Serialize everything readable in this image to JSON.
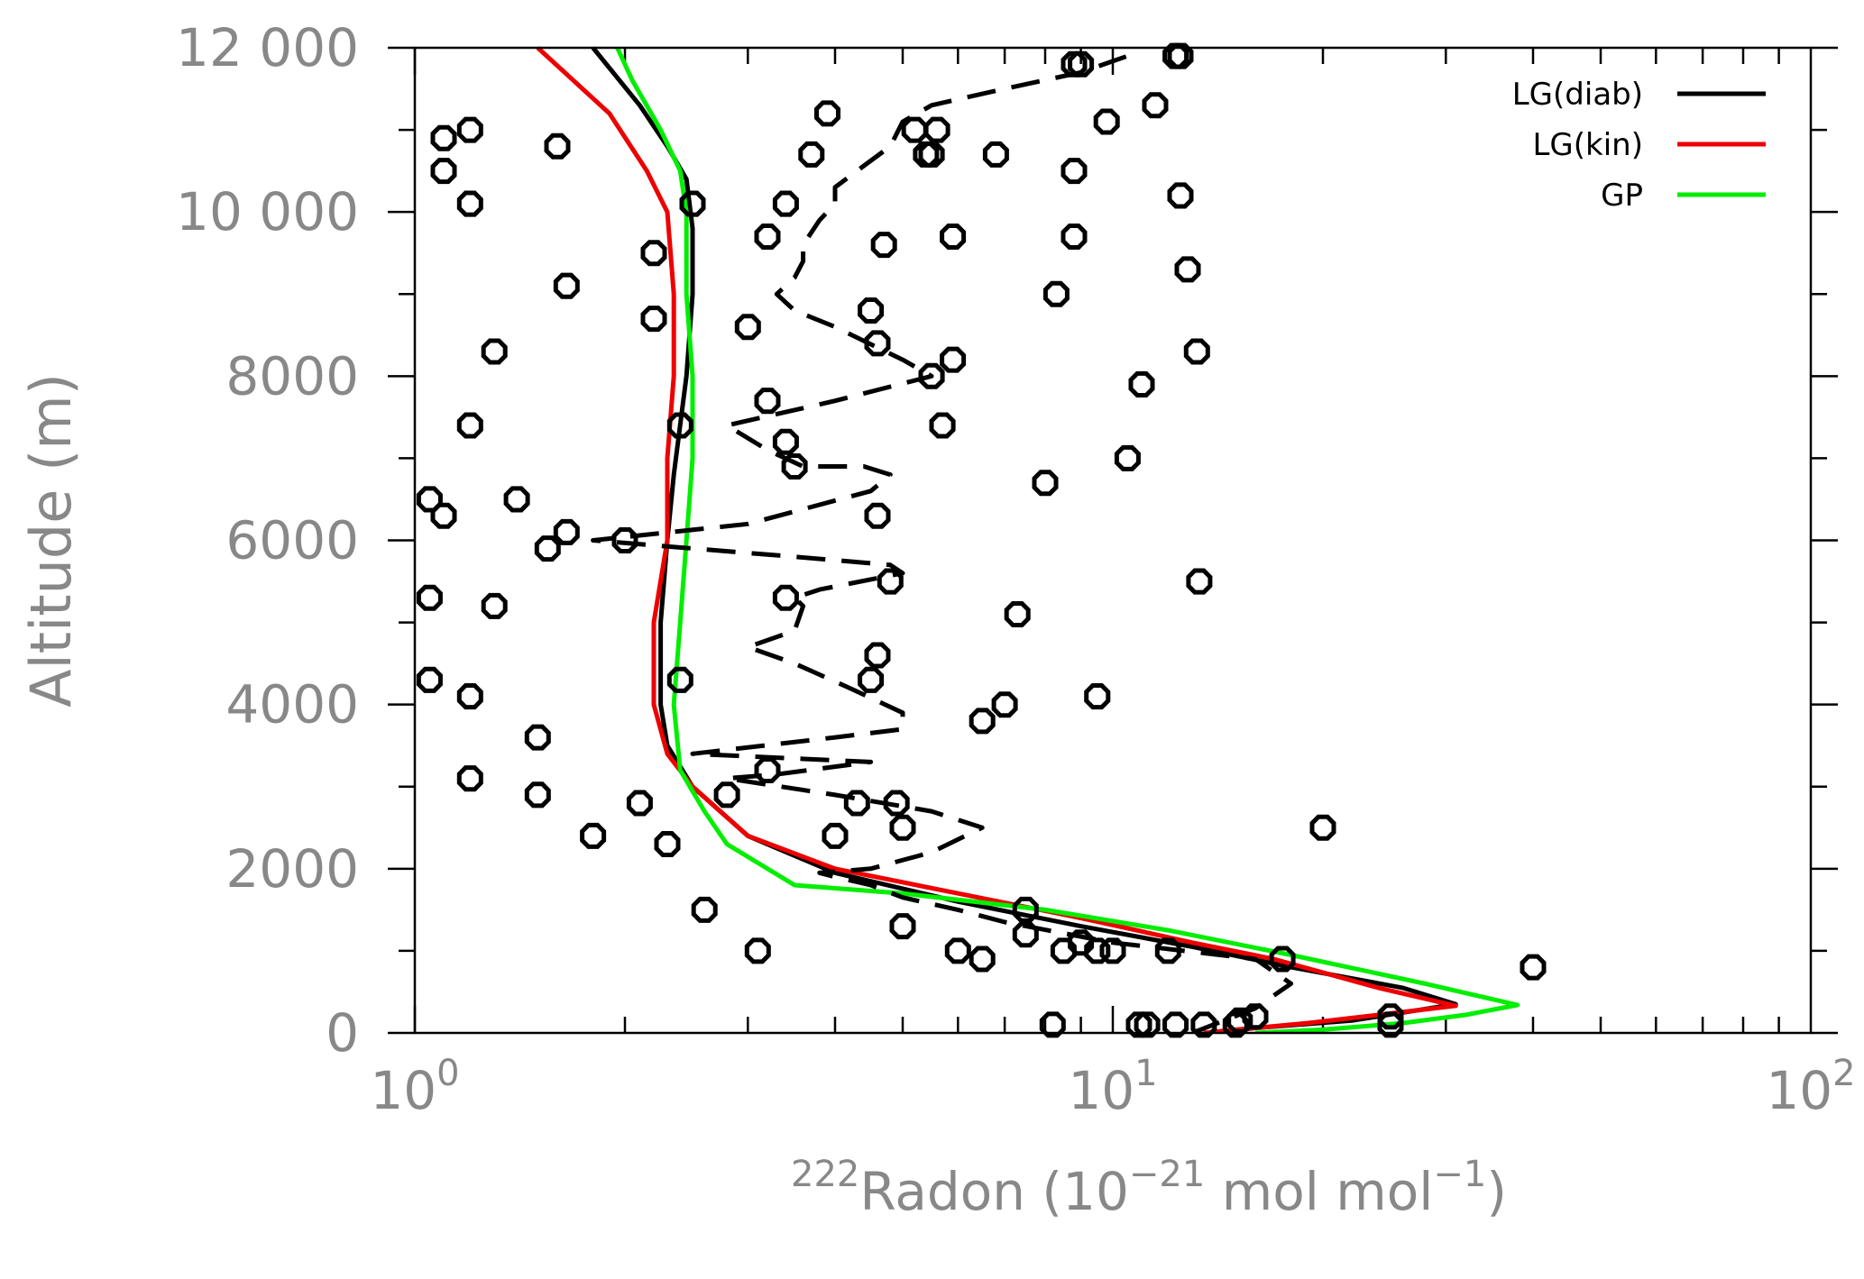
{
  "chart_data": {
    "type": "line",
    "xlabel": {
      "base": "Radon",
      "superscript": "222",
      "units": "(10",
      "exp": "−21",
      "units2": " mol mol",
      "exp2": "−1",
      "units3": ")"
    },
    "ylabel": "Altitude (m)",
    "xscale": "log",
    "xlim": [
      1,
      100
    ],
    "ylim": [
      0,
      12000
    ],
    "x_ticks": [
      {
        "base": "10",
        "exp": "0",
        "value": 1
      },
      {
        "base": "10",
        "exp": "1",
        "value": 10
      },
      {
        "base": "10",
        "exp": "2",
        "value": 100
      }
    ],
    "y_ticks": [
      {
        "label": "0",
        "value": 0
      },
      {
        "label": "2000",
        "value": 2000
      },
      {
        "label": "4000",
        "value": 4000
      },
      {
        "label": "6000",
        "value": 6000
      },
      {
        "label": "8000",
        "value": 8000
      },
      {
        "label": "10 000",
        "value": 10000
      },
      {
        "label": "12 000",
        "value": 12000
      }
    ],
    "legend_position": "top-right",
    "series": [
      {
        "name": "LG(diab)",
        "color": "#000000",
        "style": "solid",
        "points": [
          [
            14,
            0
          ],
          [
            16,
            60
          ],
          [
            22,
            150
          ],
          [
            31,
            350
          ],
          [
            26,
            550
          ],
          [
            18,
            800
          ],
          [
            13,
            1050
          ],
          [
            9,
            1300
          ],
          [
            6,
            1600
          ],
          [
            4,
            1950
          ],
          [
            3,
            2400
          ],
          [
            2.5,
            3000
          ],
          [
            2.3,
            3500
          ],
          [
            2.25,
            4000
          ],
          [
            2.25,
            5000
          ],
          [
            2.3,
            6000
          ],
          [
            2.35,
            6800
          ],
          [
            2.45,
            8000
          ],
          [
            2.5,
            9000
          ],
          [
            2.5,
            9800
          ],
          [
            2.45,
            10400
          ],
          [
            2.3,
            10800
          ],
          [
            2.1,
            11300
          ],
          [
            1.8,
            12000
          ]
        ]
      },
      {
        "name": "LG(kin)",
        "color": "#ee0000",
        "style": "solid",
        "points": [
          [
            13.5,
            0
          ],
          [
            15,
            40
          ],
          [
            19,
            120
          ],
          [
            24,
            220
          ],
          [
            31,
            330
          ],
          [
            24,
            550
          ],
          [
            17,
            900
          ],
          [
            13,
            1100
          ],
          [
            9,
            1400
          ],
          [
            6,
            1700
          ],
          [
            4,
            2000
          ],
          [
            3,
            2400
          ],
          [
            2.5,
            3000
          ],
          [
            2.3,
            3400
          ],
          [
            2.2,
            4000
          ],
          [
            2.2,
            5000
          ],
          [
            2.3,
            6000
          ],
          [
            2.3,
            7000
          ],
          [
            2.35,
            8000
          ],
          [
            2.35,
            9000
          ],
          [
            2.3,
            10000
          ],
          [
            2.15,
            10500
          ],
          [
            1.9,
            11200
          ],
          [
            1.5,
            12000
          ]
        ]
      },
      {
        "name": "GP",
        "color": "#00ee00",
        "style": "solid",
        "points": [
          [
            16,
            0
          ],
          [
            20,
            40
          ],
          [
            26,
            120
          ],
          [
            32,
            220
          ],
          [
            38,
            340
          ],
          [
            28,
            600
          ],
          [
            18,
            950
          ],
          [
            12,
            1250
          ],
          [
            8,
            1500
          ],
          [
            5,
            1700
          ],
          [
            3.5,
            1800
          ],
          [
            2.8,
            2300
          ],
          [
            2.6,
            2700
          ],
          [
            2.4,
            3200
          ],
          [
            2.35,
            4000
          ],
          [
            2.4,
            5000
          ],
          [
            2.45,
            6000
          ],
          [
            2.5,
            7000
          ],
          [
            2.5,
            8000
          ],
          [
            2.45,
            9000
          ],
          [
            2.45,
            10000
          ],
          [
            2.4,
            10500
          ],
          [
            2.25,
            11000
          ],
          [
            2.05,
            11600
          ],
          [
            1.95,
            12000
          ]
        ]
      },
      {
        "name": "",
        "color": "#000000",
        "style": "dashed",
        "points": [
          [
            13,
            0
          ],
          [
            16,
            300
          ],
          [
            18,
            600
          ],
          [
            16,
            900
          ],
          [
            10,
            1100
          ],
          [
            7,
            1350
          ],
          [
            6,
            1500
          ],
          [
            5,
            1650
          ],
          [
            4.5,
            1800
          ],
          [
            4,
            1900
          ],
          [
            3.8,
            1950
          ],
          [
            4.5,
            2000
          ],
          [
            5.5,
            2200
          ],
          [
            6.5,
            2500
          ],
          [
            5.5,
            2700
          ],
          [
            4,
            2900
          ],
          [
            2.8,
            3100
          ],
          [
            3.3,
            3150
          ],
          [
            4.5,
            3300
          ],
          [
            2.5,
            3400
          ],
          [
            4,
            3600
          ],
          [
            5,
            3700
          ],
          [
            5,
            3900
          ],
          [
            4.2,
            4200
          ],
          [
            3.5,
            4500
          ],
          [
            3,
            4700
          ],
          [
            3.5,
            4900
          ],
          [
            3.6,
            5200
          ],
          [
            3.5,
            5300
          ],
          [
            3.8,
            5400
          ],
          [
            5,
            5600
          ],
          [
            4.8,
            5700
          ],
          [
            3.5,
            5800
          ],
          [
            1.8,
            6000
          ],
          [
            3,
            6200
          ],
          [
            4.5,
            6600
          ],
          [
            4.8,
            6800
          ],
          [
            4.4,
            6900
          ],
          [
            3.6,
            6900
          ],
          [
            3.2,
            7100
          ],
          [
            2.8,
            7400
          ],
          [
            4,
            7700
          ],
          [
            5.5,
            8000
          ],
          [
            5,
            8200
          ],
          [
            4,
            8600
          ],
          [
            3.5,
            8800
          ],
          [
            3.3,
            9000
          ],
          [
            3.5,
            9200
          ],
          [
            3.6,
            9400
          ],
          [
            3.6,
            9600
          ],
          [
            3.8,
            9900
          ],
          [
            4,
            10100
          ],
          [
            4,
            10300
          ],
          [
            4.3,
            10500
          ],
          [
            4.8,
            10800
          ],
          [
            5,
            11100
          ],
          [
            5.5,
            11300
          ],
          [
            7,
            11500
          ],
          [
            9,
            11700
          ],
          [
            10.5,
            11900
          ]
        ]
      }
    ],
    "observations": {
      "marker": "octagon",
      "points": [
        [
          8.2,
          100
        ],
        [
          10.9,
          100
        ],
        [
          11.2,
          100
        ],
        [
          12.3,
          100
        ],
        [
          13.5,
          100
        ],
        [
          15,
          100
        ],
        [
          15.2,
          150
        ],
        [
          16,
          200
        ],
        [
          25,
          100
        ],
        [
          25,
          200
        ],
        [
          40,
          800
        ],
        [
          20,
          2500
        ],
        [
          17.5,
          900
        ],
        [
          12,
          1000
        ],
        [
          10,
          1000
        ],
        [
          9.5,
          1000
        ],
        [
          8.5,
          1000
        ],
        [
          9,
          1100
        ],
        [
          7.5,
          1200
        ],
        [
          7.5,
          1500
        ],
        [
          6.5,
          900
        ],
        [
          6,
          1000
        ],
        [
          5,
          1300
        ],
        [
          3.1,
          1000
        ],
        [
          2.6,
          1500
        ],
        [
          2.3,
          2300
        ],
        [
          2.1,
          2800
        ],
        [
          1.8,
          2400
        ],
        [
          1.5,
          2900
        ],
        [
          1.5,
          3600
        ],
        [
          1.2,
          3100
        ],
        [
          1.2,
          4100
        ],
        [
          1.05,
          4300
        ],
        [
          1.05,
          5300
        ],
        [
          1.3,
          5200
        ],
        [
          1.55,
          5900
        ],
        [
          1.65,
          6100
        ],
        [
          2.0,
          6000
        ],
        [
          1.1,
          6300
        ],
        [
          1.05,
          6500
        ],
        [
          1.4,
          6500
        ],
        [
          1.2,
          7400
        ],
        [
          1.3,
          8300
        ],
        [
          1.65,
          9100
        ],
        [
          1.2,
          10100
        ],
        [
          1.1,
          10500
        ],
        [
          1.1,
          10900
        ],
        [
          1.2,
          11000
        ],
        [
          1.6,
          10800
        ],
        [
          2.2,
          8700
        ],
        [
          2.2,
          9500
        ],
        [
          2.4,
          7400
        ],
        [
          2.4,
          4300
        ],
        [
          2.5,
          10100
        ],
        [
          2.8,
          2900
        ],
        [
          3.2,
          3200
        ],
        [
          3.4,
          5300
        ],
        [
          3.4,
          7200
        ],
        [
          3.5,
          6900
        ],
        [
          3.2,
          7700
        ],
        [
          3.2,
          9700
        ],
        [
          3.4,
          10100
        ],
        [
          3.0,
          8600
        ],
        [
          3.7,
          10700
        ],
        [
          3.9,
          11200
        ],
        [
          4.0,
          2400
        ],
        [
          4.3,
          2800
        ],
        [
          4.5,
          4300
        ],
        [
          4.6,
          4600
        ],
        [
          4.8,
          5500
        ],
        [
          4.6,
          6300
        ],
        [
          4.6,
          8400
        ],
        [
          4.5,
          8800
        ],
        [
          4.7,
          9600
        ],
        [
          4.9,
          2800
        ],
        [
          5.0,
          2500
        ],
        [
          5.2,
          11000
        ],
        [
          5.4,
          10700
        ],
        [
          5.5,
          10700
        ],
        [
          5.6,
          11000
        ],
        [
          5.5,
          8000
        ],
        [
          5.7,
          7400
        ],
        [
          5.9,
          8200
        ],
        [
          5.9,
          9700
        ],
        [
          6.5,
          3800
        ],
        [
          7.0,
          4000
        ],
        [
          7.3,
          5100
        ],
        [
          6.8,
          10700
        ],
        [
          8.0,
          6700
        ],
        [
          8.3,
          9000
        ],
        [
          8.8,
          9700
        ],
        [
          8.8,
          10500
        ],
        [
          8.8,
          11800
        ],
        [
          9.0,
          11800
        ],
        [
          9.5,
          4100
        ],
        [
          9.8,
          11100
        ],
        [
          10.5,
          7000
        ],
        [
          11.0,
          7900
        ],
        [
          11.5,
          11300
        ],
        [
          12.3,
          11900
        ],
        [
          12.5,
          10200
        ],
        [
          12.5,
          11900
        ],
        [
          12.8,
          9300
        ],
        [
          13.2,
          8300
        ],
        [
          13.3,
          5500
        ]
      ]
    }
  }
}
